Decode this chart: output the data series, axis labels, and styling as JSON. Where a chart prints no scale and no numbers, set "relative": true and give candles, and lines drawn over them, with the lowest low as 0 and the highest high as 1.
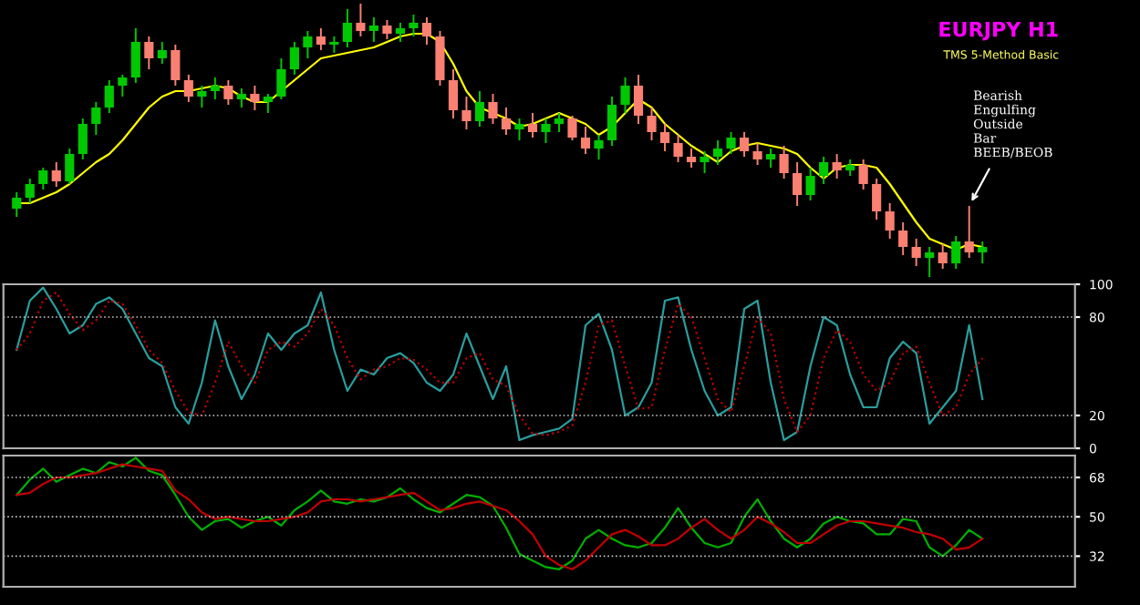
{
  "chart_data": [
    {
      "type": "candlestick",
      "relative": true,
      "title": "EURJPY H1",
      "subtitle": "TMS 5-Method Basic",
      "tick_labels": false,
      "annotations": [
        "Bearish\nEngulfing\nOutside\nBar\nBEEB/BEOB"
      ],
      "categories": [
        null,
        null,
        null,
        null,
        null,
        null,
        null,
        null,
        null,
        null,
        null,
        null,
        null,
        null,
        null,
        null,
        null,
        null,
        null,
        null,
        null,
        null,
        null,
        null,
        null,
        null,
        null,
        null,
        null,
        null,
        null,
        null,
        null,
        null,
        null,
        null,
        null,
        null,
        null,
        null,
        null,
        null,
        null,
        null,
        null,
        null,
        null,
        null,
        null,
        null,
        null,
        null,
        null,
        null,
        null,
        null,
        null,
        null,
        null,
        null,
        null,
        null,
        null,
        null,
        null,
        null,
        null,
        null,
        null,
        null,
        null,
        null,
        null,
        null
      ],
      "ohlc": [
        [
          0.25,
          0.31,
          0.22,
          0.29
        ],
        [
          0.29,
          0.36,
          0.27,
          0.34
        ],
        [
          0.34,
          0.4,
          0.32,
          0.39
        ],
        [
          0.39,
          0.42,
          0.33,
          0.35
        ],
        [
          0.35,
          0.47,
          0.34,
          0.45
        ],
        [
          0.45,
          0.58,
          0.43,
          0.56
        ],
        [
          0.56,
          0.64,
          0.52,
          0.62
        ],
        [
          0.62,
          0.72,
          0.6,
          0.7
        ],
        [
          0.7,
          0.74,
          0.66,
          0.73
        ],
        [
          0.73,
          0.91,
          0.71,
          0.86
        ],
        [
          0.86,
          0.88,
          0.76,
          0.8
        ],
        [
          0.8,
          0.86,
          0.78,
          0.83
        ],
        [
          0.83,
          0.85,
          0.7,
          0.72
        ],
        [
          0.72,
          0.74,
          0.64,
          0.66
        ],
        [
          0.66,
          0.7,
          0.62,
          0.68
        ],
        [
          0.68,
          0.73,
          0.65,
          0.7
        ],
        [
          0.7,
          0.72,
          0.63,
          0.65
        ],
        [
          0.65,
          0.69,
          0.62,
          0.67
        ],
        [
          0.67,
          0.7,
          0.61,
          0.64
        ],
        [
          0.64,
          0.67,
          0.6,
          0.66
        ],
        [
          0.66,
          0.8,
          0.65,
          0.76
        ],
        [
          0.76,
          0.86,
          0.74,
          0.84
        ],
        [
          0.84,
          0.9,
          0.8,
          0.88
        ],
        [
          0.88,
          0.91,
          0.83,
          0.85
        ],
        [
          0.85,
          0.88,
          0.82,
          0.86
        ],
        [
          0.86,
          0.98,
          0.84,
          0.93
        ],
        [
          0.93,
          1.0,
          0.88,
          0.9
        ],
        [
          0.9,
          0.95,
          0.86,
          0.92
        ],
        [
          0.92,
          0.94,
          0.87,
          0.89
        ],
        [
          0.89,
          0.93,
          0.86,
          0.91
        ],
        [
          0.91,
          0.96,
          0.88,
          0.93
        ],
        [
          0.93,
          0.95,
          0.85,
          0.88
        ],
        [
          0.88,
          0.9,
          0.7,
          0.72
        ],
        [
          0.72,
          0.76,
          0.58,
          0.61
        ],
        [
          0.61,
          0.66,
          0.54,
          0.57
        ],
        [
          0.57,
          0.68,
          0.55,
          0.64
        ],
        [
          0.64,
          0.67,
          0.56,
          0.58
        ],
        [
          0.58,
          0.62,
          0.52,
          0.54
        ],
        [
          0.54,
          0.58,
          0.5,
          0.56
        ],
        [
          0.56,
          0.6,
          0.51,
          0.53
        ],
        [
          0.53,
          0.58,
          0.49,
          0.56
        ],
        [
          0.56,
          0.6,
          0.53,
          0.58
        ],
        [
          0.58,
          0.59,
          0.5,
          0.51
        ],
        [
          0.51,
          0.55,
          0.45,
          0.47
        ],
        [
          0.47,
          0.52,
          0.43,
          0.5
        ],
        [
          0.5,
          0.66,
          0.48,
          0.63
        ],
        [
          0.63,
          0.73,
          0.6,
          0.7
        ],
        [
          0.7,
          0.74,
          0.56,
          0.59
        ],
        [
          0.59,
          0.62,
          0.5,
          0.53
        ],
        [
          0.53,
          0.56,
          0.46,
          0.49
        ],
        [
          0.49,
          0.52,
          0.42,
          0.44
        ],
        [
          0.44,
          0.47,
          0.4,
          0.42
        ],
        [
          0.42,
          0.46,
          0.38,
          0.44
        ],
        [
          0.44,
          0.5,
          0.41,
          0.47
        ],
        [
          0.47,
          0.53,
          0.45,
          0.51
        ],
        [
          0.51,
          0.53,
          0.44,
          0.46
        ],
        [
          0.46,
          0.49,
          0.41,
          0.43
        ],
        [
          0.43,
          0.47,
          0.4,
          0.45
        ],
        [
          0.45,
          0.48,
          0.36,
          0.38
        ],
        [
          0.38,
          0.42,
          0.26,
          0.3
        ],
        [
          0.3,
          0.4,
          0.28,
          0.37
        ],
        [
          0.37,
          0.44,
          0.34,
          0.42
        ],
        [
          0.42,
          0.45,
          0.36,
          0.39
        ],
        [
          0.39,
          0.43,
          0.37,
          0.41
        ],
        [
          0.41,
          0.43,
          0.32,
          0.34
        ],
        [
          0.34,
          0.36,
          0.21,
          0.24
        ],
        [
          0.24,
          0.27,
          0.14,
          0.17
        ],
        [
          0.17,
          0.2,
          0.08,
          0.11
        ],
        [
          0.11,
          0.14,
          0.04,
          0.07
        ],
        [
          0.07,
          0.11,
          0.0,
          0.09
        ],
        [
          0.09,
          0.12,
          0.03,
          0.05
        ],
        [
          0.05,
          0.15,
          0.03,
          0.13
        ],
        [
          0.13,
          0.26,
          0.07,
          0.09
        ],
        [
          0.09,
          0.13,
          0.05,
          0.11
        ]
      ],
      "colors": [
        "#00c800",
        "#00c800",
        "#00c800",
        "#fa8072",
        "#00c800",
        "#00c800",
        "#00c800",
        "#00c800",
        "#00c800",
        "#00c800",
        "#fa8072",
        "#00c800",
        "#fa8072",
        "#fa8072",
        "#00c800",
        "#00c800",
        "#fa8072",
        "#00c800",
        "#fa8072",
        "#00c800",
        "#00c800",
        "#00c800",
        "#00c800",
        "#fa8072",
        "#00c800",
        "#00c800",
        "#fa8072",
        "#00c800",
        "#fa8072",
        "#00c800",
        "#00c800",
        "#fa8072",
        "#fa8072",
        "#fa8072",
        "#fa8072",
        "#00c800",
        "#fa8072",
        "#fa8072",
        "#00c800",
        "#fa8072",
        "#00c800",
        "#00c800",
        "#fa8072",
        "#fa8072",
        "#00c800",
        "#00c800",
        "#00c800",
        "#fa8072",
        "#fa8072",
        "#fa8072",
        "#fa8072",
        "#fa8072",
        "#00c800",
        "#00c800",
        "#00c800",
        "#fa8072",
        "#fa8072",
        "#00c800",
        "#fa8072",
        "#fa8072",
        "#00c800",
        "#00c800",
        "#fa8072",
        "#00c800",
        "#fa8072",
        "#fa8072",
        "#fa8072",
        "#fa8072",
        "#fa8072",
        "#00c800",
        "#fa8072",
        "#00c800",
        "#fa8072",
        "#00c800"
      ],
      "series": [
        {
          "type": "line",
          "color": "#ffff00",
          "values": [
            0.27,
            0.27,
            0.29,
            0.31,
            0.34,
            0.38,
            0.42,
            0.45,
            0.5,
            0.56,
            0.62,
            0.66,
            0.68,
            0.68,
            0.69,
            0.7,
            0.69,
            0.66,
            0.64,
            0.64,
            0.68,
            0.72,
            0.76,
            0.8,
            0.81,
            0.82,
            0.83,
            0.84,
            0.86,
            0.88,
            0.89,
            0.89,
            0.86,
            0.78,
            0.68,
            0.62,
            0.6,
            0.58,
            0.55,
            0.56,
            0.58,
            0.6,
            0.58,
            0.56,
            0.52,
            0.55,
            0.6,
            0.65,
            0.62,
            0.56,
            0.52,
            0.48,
            0.45,
            0.42,
            0.46,
            0.48,
            0.49,
            0.48,
            0.47,
            0.45,
            0.4,
            0.36,
            0.4,
            0.41,
            0.41,
            0.4,
            0.34,
            0.27,
            0.2,
            0.14,
            0.12,
            0.1,
            0.12,
            0.11
          ]
        }
      ]
    },
    {
      "type": "line",
      "tick_labels": "y",
      "categories": [
        null,
        null,
        null,
        null,
        null,
        null,
        null,
        null,
        null,
        null,
        null,
        null,
        null,
        null,
        null,
        null,
        null,
        null,
        null,
        null,
        null,
        null,
        null,
        null,
        null,
        null,
        null,
        null,
        null,
        null,
        null,
        null,
        null,
        null,
        null,
        null,
        null,
        null,
        null,
        null,
        null,
        null,
        null,
        null,
        null,
        null,
        null,
        null,
        null,
        null,
        null,
        null,
        null,
        null,
        null,
        null,
        null,
        null,
        null,
        null,
        null,
        null,
        null,
        null,
        null,
        null,
        null,
        null,
        null,
        null,
        null,
        null,
        null,
        null
      ],
      "ylim": [
        0,
        100
      ],
      "yticks": [
        0,
        20,
        80,
        100
      ],
      "ref_lines": [
        {
          "axis": "y",
          "value": 80,
          "color": "#c0c0c0",
          "line_style": "dotted"
        },
        {
          "axis": "y",
          "value": 20,
          "color": "#c0c0c0",
          "line_style": "dotted"
        }
      ],
      "series": [
        {
          "color": "#2a9d9d",
          "line_style": "solid",
          "values": [
            60,
            90,
            98,
            85,
            70,
            75,
            88,
            92,
            85,
            70,
            55,
            50,
            25,
            15,
            40,
            78,
            50,
            30,
            45,
            70,
            60,
            70,
            75,
            95,
            60,
            35,
            48,
            45,
            55,
            58,
            52,
            40,
            35,
            45,
            70,
            50,
            30,
            50,
            5,
            8,
            10,
            12,
            18,
            75,
            82,
            60,
            20,
            25,
            40,
            90,
            92,
            60,
            35,
            20,
            25,
            85,
            90,
            40,
            5,
            10,
            50,
            80,
            75,
            45,
            25,
            25,
            55,
            65,
            58,
            15,
            25,
            35,
            75,
            30
          ]
        },
        {
          "color": "#c00000",
          "line_style": "dotted",
          "values": [
            60,
            70,
            90,
            95,
            82,
            72,
            78,
            90,
            88,
            75,
            60,
            52,
            35,
            22,
            20,
            40,
            65,
            50,
            40,
            60,
            65,
            62,
            70,
            85,
            75,
            55,
            42,
            48,
            50,
            55,
            54,
            48,
            40,
            40,
            55,
            58,
            42,
            38,
            20,
            9,
            8,
            10,
            14,
            40,
            75,
            78,
            50,
            24,
            25,
            60,
            88,
            80,
            55,
            30,
            22,
            50,
            80,
            70,
            30,
            10,
            20,
            55,
            72,
            65,
            45,
            35,
            40,
            58,
            62,
            40,
            20,
            25,
            45,
            55
          ]
        }
      ]
    },
    {
      "type": "line",
      "tick_labels": "y",
      "categories": [
        null,
        null,
        null,
        null,
        null,
        null,
        null,
        null,
        null,
        null,
        null,
        null,
        null,
        null,
        null,
        null,
        null,
        null,
        null,
        null,
        null,
        null,
        null,
        null,
        null,
        null,
        null,
        null,
        null,
        null,
        null,
        null,
        null,
        null,
        null,
        null,
        null,
        null,
        null,
        null,
        null,
        null,
        null,
        null,
        null,
        null,
        null,
        null,
        null,
        null,
        null,
        null,
        null,
        null,
        null,
        null,
        null,
        null,
        null,
        null,
        null,
        null,
        null,
        null,
        null,
        null,
        null,
        null,
        null,
        null,
        null,
        null,
        null,
        null
      ],
      "ylim": [
        18,
        78
      ],
      "yticks": [
        32,
        50,
        68
      ],
      "ref_lines": [
        {
          "axis": "y",
          "value": 68,
          "color": "#c0c0c0",
          "line_style": "dotted"
        },
        {
          "axis": "y",
          "value": 50,
          "color": "#c0c0c0",
          "line_style": "dotted"
        },
        {
          "axis": "y",
          "value": 32,
          "color": "#c0c0c0",
          "line_style": "dotted"
        }
      ],
      "series": [
        {
          "color": "#00b000",
          "line_style": "solid",
          "values": [
            60,
            67,
            72,
            66,
            69,
            72,
            70,
            75,
            73,
            77,
            71,
            69,
            60,
            50,
            44,
            48,
            49,
            45,
            48,
            50,
            46,
            53,
            57,
            62,
            57,
            56,
            58,
            57,
            59,
            63,
            58,
            54,
            52,
            56,
            60,
            59,
            55,
            45,
            33,
            30,
            27,
            26,
            30,
            40,
            44,
            40,
            37,
            36,
            38,
            45,
            54,
            45,
            38,
            36,
            38,
            50,
            58,
            48,
            40,
            36,
            40,
            47,
            50,
            48,
            47,
            42,
            42,
            49,
            48,
            36,
            32,
            37,
            44,
            40
          ]
        },
        {
          "color": "#c00000",
          "line_style": "solid",
          "values": [
            60,
            61,
            65,
            68,
            68,
            69,
            70,
            72,
            74,
            73,
            72,
            71,
            62,
            58,
            52,
            49,
            50,
            49,
            48,
            48,
            49,
            50,
            52,
            57,
            58,
            58,
            57,
            58,
            59,
            60,
            61,
            57,
            53,
            54,
            56,
            57,
            55,
            53,
            48,
            42,
            32,
            28,
            26,
            30,
            36,
            42,
            44,
            41,
            37,
            37,
            40,
            45,
            49,
            44,
            40,
            44,
            50,
            47,
            43,
            38,
            38,
            42,
            46,
            48,
            48,
            47,
            46,
            45,
            43,
            42,
            40,
            35,
            36,
            40
          ]
        }
      ]
    }
  ]
}
